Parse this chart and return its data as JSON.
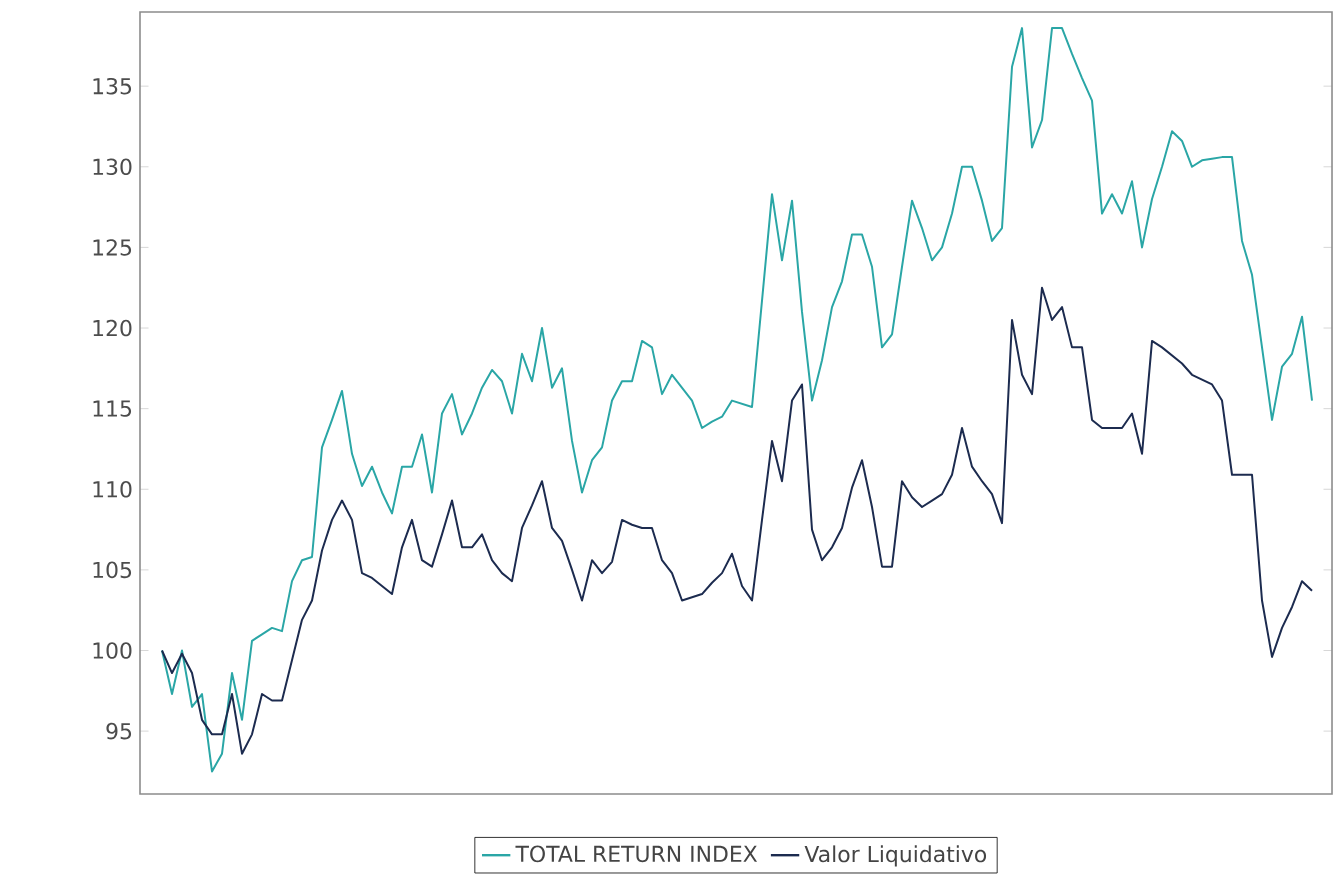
{
  "chart_data": {
    "type": "line",
    "tick_labels": "y",
    "legend": "bottom",
    "grid": false,
    "marker": "none",
    "line_style": "solid",
    "ylim": [
      91.1,
      139.6
    ],
    "yticks": [
      95,
      100,
      105,
      110,
      115,
      120,
      125,
      130,
      135
    ],
    "categories": [
      null,
      null,
      null,
      null,
      null,
      null,
      null,
      null,
      null,
      null,
      null,
      null,
      null,
      null,
      null,
      null,
      null,
      null,
      null,
      null,
      null,
      null,
      null,
      null,
      null,
      null,
      null,
      null,
      null,
      null,
      null,
      null,
      null,
      null,
      null,
      null,
      null,
      null,
      null,
      null,
      null,
      null,
      null,
      null,
      null,
      null,
      null,
      null,
      null,
      null,
      null,
      null,
      null,
      null,
      null,
      null,
      null,
      null,
      null,
      null,
      null,
      null,
      null,
      null,
      null,
      null,
      null,
      null,
      null,
      null,
      null,
      null,
      null,
      null,
      null,
      null,
      null,
      null,
      null,
      null,
      null,
      null,
      null,
      null,
      null,
      null,
      null,
      null,
      null,
      null,
      null,
      null,
      null,
      null,
      null,
      null,
      null,
      null,
      null,
      null,
      null,
      null,
      null,
      null,
      null,
      null,
      null,
      null,
      null,
      null,
      null,
      null,
      null,
      null,
      null,
      null
    ],
    "series": [
      {
        "name": "TOTAL RETURN INDEX",
        "color": "#2aa6a6",
        "values": [
          100,
          97.3,
          100,
          96.5,
          97.3,
          92.5,
          93.6,
          98.6,
          95.7,
          100.6,
          101.0,
          101.4,
          101.2,
          104.3,
          105.6,
          105.8,
          112.6,
          114.3,
          116.1,
          112.2,
          110.2,
          111.4,
          109.8,
          108.5,
          111.4,
          111.4,
          113.4,
          109.8,
          114.7,
          115.9,
          113.4,
          114.7,
          116.3,
          117.4,
          116.7,
          114.7,
          118.4,
          116.7,
          120.0,
          116.3,
          117.5,
          113.0,
          109.8,
          111.8,
          112.6,
          115.5,
          116.7,
          116.7,
          119.2,
          118.8,
          115.9,
          117.1,
          116.3,
          115.5,
          113.8,
          114.2,
          114.5,
          115.5,
          115.3,
          115.1,
          121.7,
          128.3,
          124.2,
          127.9,
          121.0,
          115.5,
          118.0,
          121.3,
          122.9,
          125.8,
          125.8,
          123.8,
          118.8,
          119.6,
          123.8,
          127.9,
          126.2,
          124.2,
          125.0,
          127.1,
          130.0,
          130.0,
          127.9,
          125.4,
          126.2,
          136.2,
          138.6,
          131.2,
          132.9,
          138.6,
          138.6,
          137.0,
          135.5,
          134.1,
          127.1,
          128.3,
          127.1,
          129.1,
          125.0,
          128.0,
          130.0,
          132.2,
          131.6,
          130.0,
          130.4,
          130.5,
          130.6,
          130.6,
          125.4,
          123.3,
          118.8,
          114.3,
          117.6,
          118.4,
          120.7,
          115.5
        ]
      },
      {
        "name": "Valor Liquidativo",
        "color": "#1c2b4f",
        "values": [
          100,
          98.6,
          99.8,
          98.6,
          95.7,
          94.8,
          94.8,
          97.3,
          93.6,
          94.8,
          97.3,
          96.9,
          96.9,
          99.4,
          101.9,
          103.1,
          106.2,
          108.1,
          109.3,
          108.1,
          104.8,
          104.5,
          104.0,
          103.5,
          106.4,
          108.1,
          105.6,
          105.2,
          107.2,
          109.3,
          106.4,
          106.4,
          107.2,
          105.6,
          104.8,
          104.3,
          107.6,
          109.0,
          110.5,
          107.6,
          106.8,
          105.0,
          103.1,
          105.6,
          104.8,
          105.5,
          108.1,
          107.8,
          107.6,
          107.6,
          105.6,
          104.8,
          103.1,
          103.3,
          103.5,
          104.2,
          104.8,
          106.0,
          104.0,
          103.1,
          108.1,
          113.0,
          110.5,
          115.5,
          116.5,
          107.5,
          105.6,
          106.4,
          107.6,
          110.1,
          111.8,
          108.9,
          105.2,
          105.2,
          110.5,
          109.5,
          108.9,
          109.3,
          109.7,
          110.9,
          113.8,
          111.4,
          110.5,
          109.7,
          107.9,
          120.5,
          117.1,
          115.9,
          122.5,
          120.5,
          121.3,
          118.8,
          118.8,
          114.3,
          113.8,
          113.8,
          113.8,
          114.7,
          112.2,
          119.2,
          118.8,
          118.3,
          117.8,
          117.1,
          116.8,
          116.5,
          115.5,
          110.9,
          110.9,
          110.9,
          103.1,
          99.6,
          101.4,
          102.7,
          104.3,
          103.7
        ]
      }
    ]
  }
}
